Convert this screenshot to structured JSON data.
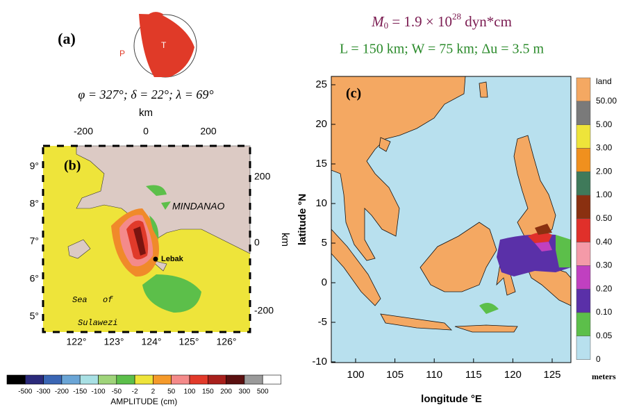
{
  "panel_a": {
    "label": "(a)",
    "p_label": "P",
    "t_label": "T",
    "mechanism": "φ = 327°; δ = 22°; λ = 69°"
  },
  "panel_b": {
    "label": "(b)",
    "top_axis_title": "km",
    "top_ticks": [
      "-200",
      "0",
      "200"
    ],
    "right_axis_title": "km",
    "right_ticks": [
      "200",
      "0",
      "-200"
    ],
    "lat_ticks": [
      "9°",
      "8°",
      "7°",
      "6°",
      "5°"
    ],
    "lon_ticks": [
      "122°",
      "123°",
      "124°",
      "125°",
      "126°"
    ],
    "island": "MINDANAO",
    "town": "Lebak",
    "sea": [
      "Sea",
      "of",
      "Sulawezi"
    ],
    "colorbar": {
      "title": "AMPLITUDE (cm)",
      "labels": [
        "-500",
        "-300",
        "-200",
        "-150",
        "-100",
        "-50",
        "-2",
        "2",
        "50",
        "100",
        "150",
        "200",
        "300",
        "500"
      ],
      "colors": [
        "#000000",
        "#2b2a7a",
        "#3a66b4",
        "#6aa5d6",
        "#a8e0e4",
        "#9fd47a",
        "#5cbf4a",
        "#eee43a",
        "#f59a2a",
        "#f48a8a",
        "#e23a2a",
        "#a8201c",
        "#5a1010",
        "#9a9a9a",
        "#ffffff"
      ]
    }
  },
  "panel_c": {
    "label": "(c)",
    "moment": {
      "symbol": "M",
      "subscript": "0",
      "text": " = 1.9 × 10",
      "exponent": "28",
      "unit": " dyn*cm"
    },
    "fault": "L = 150 km; W = 75 km; Δu = 3.5 m",
    "y_title": "latitude °N",
    "x_title": "longitude °E",
    "yticks": [
      25,
      20,
      15,
      10,
      5,
      0,
      -5,
      -10
    ],
    "xticks": [
      100,
      105,
      110,
      115,
      120,
      125
    ],
    "legend": {
      "labels": [
        "land",
        "50.00",
        "5.00",
        "3.00",
        "2.00",
        "1.00",
        "0.50",
        "0.40",
        "0.30",
        "0.20",
        "0.10",
        "0.05",
        "0"
      ],
      "colors": [
        "#f4a862",
        "#7a7a7a",
        "#eee43a",
        "#f0901e",
        "#3f7a5a",
        "#8a3010",
        "#e0302a",
        "#f49aa8",
        "#c040c0",
        "#5a30a8",
        "#5cbf4a",
        "#b8e0ee"
      ],
      "unit": "meters"
    }
  }
}
